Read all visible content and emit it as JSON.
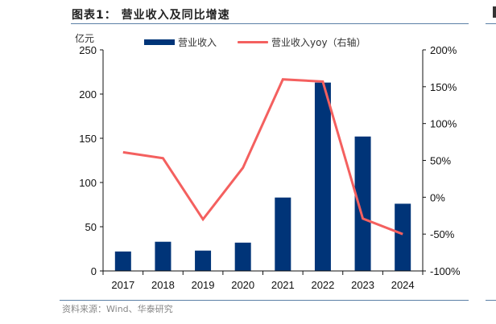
{
  "title": "图表1：  营业收入及同比增速",
  "left_unit": "亿元",
  "legend": {
    "bar_label": "营业收入",
    "line_label": "营业收入yoy（右轴）"
  },
  "source": "资料来源：Wind、华泰研究",
  "colors": {
    "bar": "#003478",
    "line": "#f4605f",
    "rule": "#5b7fa6",
    "axis": "#111111"
  },
  "chart_data": {
    "type": "bar",
    "title": "营业收入及同比增速",
    "categories": [
      "2017",
      "2018",
      "2019",
      "2020",
      "2021",
      "2022",
      "2023",
      "2024"
    ],
    "series": [
      {
        "name": "营业收入",
        "type": "bar",
        "axis": "left",
        "values": [
          22,
          33,
          23,
          32,
          83,
          213,
          152,
          76
        ]
      },
      {
        "name": "营业收入yoy（右轴）",
        "type": "line",
        "axis": "right",
        "values": [
          61,
          53,
          -30,
          40,
          160,
          157,
          -29,
          -50
        ]
      }
    ],
    "xlabel": "",
    "ylabel": "亿元",
    "ylim": [
      0,
      250
    ],
    "yticks": [
      "0",
      "50",
      "100",
      "150",
      "200",
      "250"
    ],
    "y2lim": [
      -100,
      200
    ],
    "y2ticks": [
      "-100%",
      "-50%",
      "0%",
      "50%",
      "100%",
      "150%",
      "200%"
    ],
    "grid": false,
    "legend_position": "top"
  }
}
